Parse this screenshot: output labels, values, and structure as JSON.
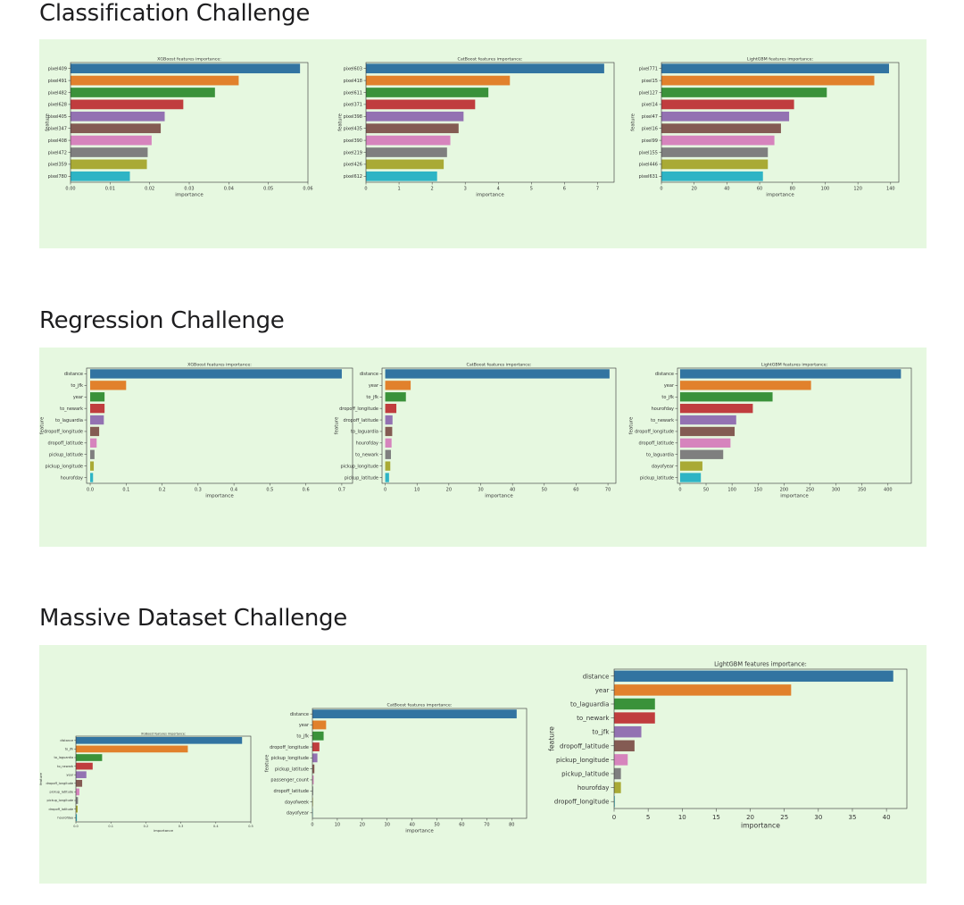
{
  "sections": [
    {
      "title": "Classification Challenge"
    },
    {
      "title": "Regression Challenge"
    },
    {
      "title": "Massive Dataset Challenge"
    }
  ],
  "palette": [
    "#3274a1",
    "#e1812c",
    "#3a923a",
    "#c03d3e",
    "#9372b2",
    "#845b53",
    "#d684bd",
    "#7f7f7f",
    "#a9aa35",
    "#2eb4c5"
  ],
  "chart_data": [
    {
      "type": "bar",
      "orientation": "horizontal",
      "title": "XGBoost features importance:",
      "xlabel": "importance",
      "ylabel": "feature",
      "categories": [
        "pixel409",
        "pixel491",
        "pixel482",
        "pixel628",
        "pixel405",
        "pixel347",
        "pixel408",
        "pixel472",
        "pixel359",
        "pixel780"
      ],
      "values": [
        0.058,
        0.0425,
        0.0365,
        0.0285,
        0.0238,
        0.0228,
        0.0205,
        0.0195,
        0.0193,
        0.015
      ],
      "xlim": [
        0,
        0.06
      ],
      "xticks": [
        0,
        0.01,
        0.02,
        0.03,
        0.04,
        0.05,
        0.06
      ],
      "xtick_labels": [
        "0.00",
        "0.01",
        "0.02",
        "0.03",
        "0.04",
        "0.05",
        "0.06"
      ]
    },
    {
      "type": "bar",
      "orientation": "horizontal",
      "title": "CatBoost features importance:",
      "xlabel": "importance",
      "ylabel": "feature",
      "categories": [
        "pixel603",
        "pixel418",
        "pixel611",
        "pixel371",
        "pixel398",
        "pixel435",
        "pixel390",
        "pixel219",
        "pixel426",
        "pixel612"
      ],
      "values": [
        7.2,
        4.35,
        3.7,
        3.3,
        2.95,
        2.8,
        2.55,
        2.45,
        2.35,
        2.15
      ],
      "xlim": [
        0,
        7.5
      ],
      "xticks": [
        0,
        1,
        2,
        3,
        4,
        5,
        6,
        7
      ],
      "xtick_labels": [
        "0",
        "1",
        "2",
        "3",
        "4",
        "5",
        "6",
        "7"
      ]
    },
    {
      "type": "bar",
      "orientation": "horizontal",
      "title": "LightGBM features importance:",
      "xlabel": "importance",
      "ylabel": "feature",
      "categories": [
        "pixel771",
        "pixel15",
        "pixel127",
        "pixel14",
        "pixel47",
        "pixel16",
        "pixel99",
        "pixel155",
        "pixel446",
        "pixel631"
      ],
      "values": [
        139,
        130,
        101,
        81,
        78,
        73,
        69,
        65,
        65,
        62
      ],
      "xlim": [
        0,
        145
      ],
      "xticks": [
        0,
        20,
        40,
        60,
        80,
        100,
        120,
        140
      ],
      "xtick_labels": [
        "0",
        "20",
        "40",
        "60",
        "80",
        "100",
        "120",
        "140"
      ]
    },
    {
      "type": "bar",
      "orientation": "horizontal",
      "title": "XGBoost features importance:",
      "xlabel": "importance",
      "ylabel": "feature",
      "categories": [
        "distance",
        "to_jfk",
        "year",
        "to_newark",
        "to_laguardia",
        "dropoff_longitude",
        "dropoff_latitude",
        "pickup_latitude",
        "pickup_longitude",
        "hourofday"
      ],
      "values": [
        0.7,
        0.1,
        0.04,
        0.04,
        0.038,
        0.025,
        0.018,
        0.012,
        0.01,
        0.008
      ],
      "xlim": [
        -0.01,
        0.73
      ],
      "xticks": [
        0,
        0.1,
        0.2,
        0.3,
        0.4,
        0.5,
        0.6,
        0.7
      ],
      "xtick_labels": [
        "0.0",
        "0.1",
        "0.2",
        "0.3",
        "0.4",
        "0.5",
        "0.6",
        "0.7"
      ]
    },
    {
      "type": "bar",
      "orientation": "horizontal",
      "title": "CatBoost features importance:",
      "xlabel": "importance",
      "ylabel": "feature",
      "categories": [
        "distance",
        "year",
        "to_jfk",
        "dropoff_longitude",
        "dropoff_latitude",
        "to_laguardia",
        "hourofday",
        "to_newark",
        "pickup_longitude",
        "pickup_latitude"
      ],
      "values": [
        70.5,
        8,
        6.5,
        3.5,
        2.3,
        2.2,
        2,
        1.8,
        1.6,
        1.2
      ],
      "xlim": [
        -1,
        72.5
      ],
      "xticks": [
        0,
        10,
        20,
        30,
        40,
        50,
        60,
        70
      ],
      "xtick_labels": [
        "0",
        "10",
        "20",
        "30",
        "40",
        "50",
        "60",
        "70"
      ]
    },
    {
      "type": "bar",
      "orientation": "horizontal",
      "title": "LightGBM features importance:",
      "xlabel": "importance",
      "ylabel": "feature",
      "categories": [
        "distance",
        "year",
        "to_jfk",
        "hourofday",
        "to_newark",
        "dropoff_longitude",
        "dropoff_latitude",
        "to_laguardia",
        "dayofyear",
        "pickup_latitude"
      ],
      "values": [
        425,
        252,
        178,
        140,
        108,
        105,
        97,
        83,
        43,
        40
      ],
      "xlim": [
        -5,
        445
      ],
      "xticks": [
        0,
        50,
        100,
        150,
        200,
        250,
        300,
        350,
        400
      ],
      "xtick_labels": [
        "0",
        "50",
        "100",
        "150",
        "200",
        "250",
        "300",
        "350",
        "400"
      ]
    },
    {
      "type": "bar",
      "orientation": "horizontal",
      "title": "XGBoost features importance:",
      "xlabel": "importance",
      "ylabel": "feature",
      "categories": [
        "distance",
        "to_jfk",
        "to_laguardia",
        "to_newark",
        "year",
        "dropoff_longitude",
        "pickup_latitude",
        "pickup_longitude",
        "dropoff_latitude",
        "hourofday"
      ],
      "values": [
        0.475,
        0.32,
        0.075,
        0.048,
        0.03,
        0.018,
        0.01,
        0.006,
        0.005,
        0.003
      ],
      "xlim": [
        0,
        0.5
      ],
      "xticks": [
        0,
        0.1,
        0.2,
        0.3,
        0.4,
        0.5
      ],
      "xtick_labels": [
        "0.0",
        "0.1",
        "0.2",
        "0.3",
        "0.4",
        "0.5"
      ]
    },
    {
      "type": "bar",
      "orientation": "horizontal",
      "title": "CatBoost features importance:",
      "xlabel": "importance",
      "ylabel": "feature",
      "categories": [
        "distance",
        "year",
        "to_jfk",
        "dropoff_longitude",
        "pickup_longitude",
        "pickup_latitude",
        "passenger_count",
        "dropoff_latitude",
        "dayofweek",
        "dayofyear"
      ],
      "values": [
        82,
        5.5,
        4.5,
        2.8,
        2,
        0.8,
        0.5,
        0.3,
        0.2,
        0.1
      ],
      "xlim": [
        0,
        86
      ],
      "xticks": [
        0,
        10,
        20,
        30,
        40,
        50,
        60,
        70,
        80
      ],
      "xtick_labels": [
        "0",
        "10",
        "20",
        "30",
        "40",
        "50",
        "60",
        "70",
        "80"
      ]
    },
    {
      "type": "bar",
      "orientation": "horizontal",
      "title": "LightGBM features importance:",
      "xlabel": "importance",
      "ylabel": "feature",
      "categories": [
        "distance",
        "year",
        "to_laguardia",
        "to_newark",
        "to_jfk",
        "dropoff_latitude",
        "pickup_longitude",
        "pickup_latitude",
        "hourofday",
        "dropoff_longitude"
      ],
      "values": [
        41,
        26,
        6,
        6,
        4,
        3,
        2,
        1,
        1,
        0.1
      ],
      "xlim": [
        0,
        43
      ],
      "xticks": [
        0,
        5,
        10,
        15,
        20,
        25,
        30,
        35,
        40
      ],
      "xtick_labels": [
        "0",
        "5",
        "10",
        "15",
        "20",
        "25",
        "30",
        "35",
        "40"
      ]
    }
  ]
}
